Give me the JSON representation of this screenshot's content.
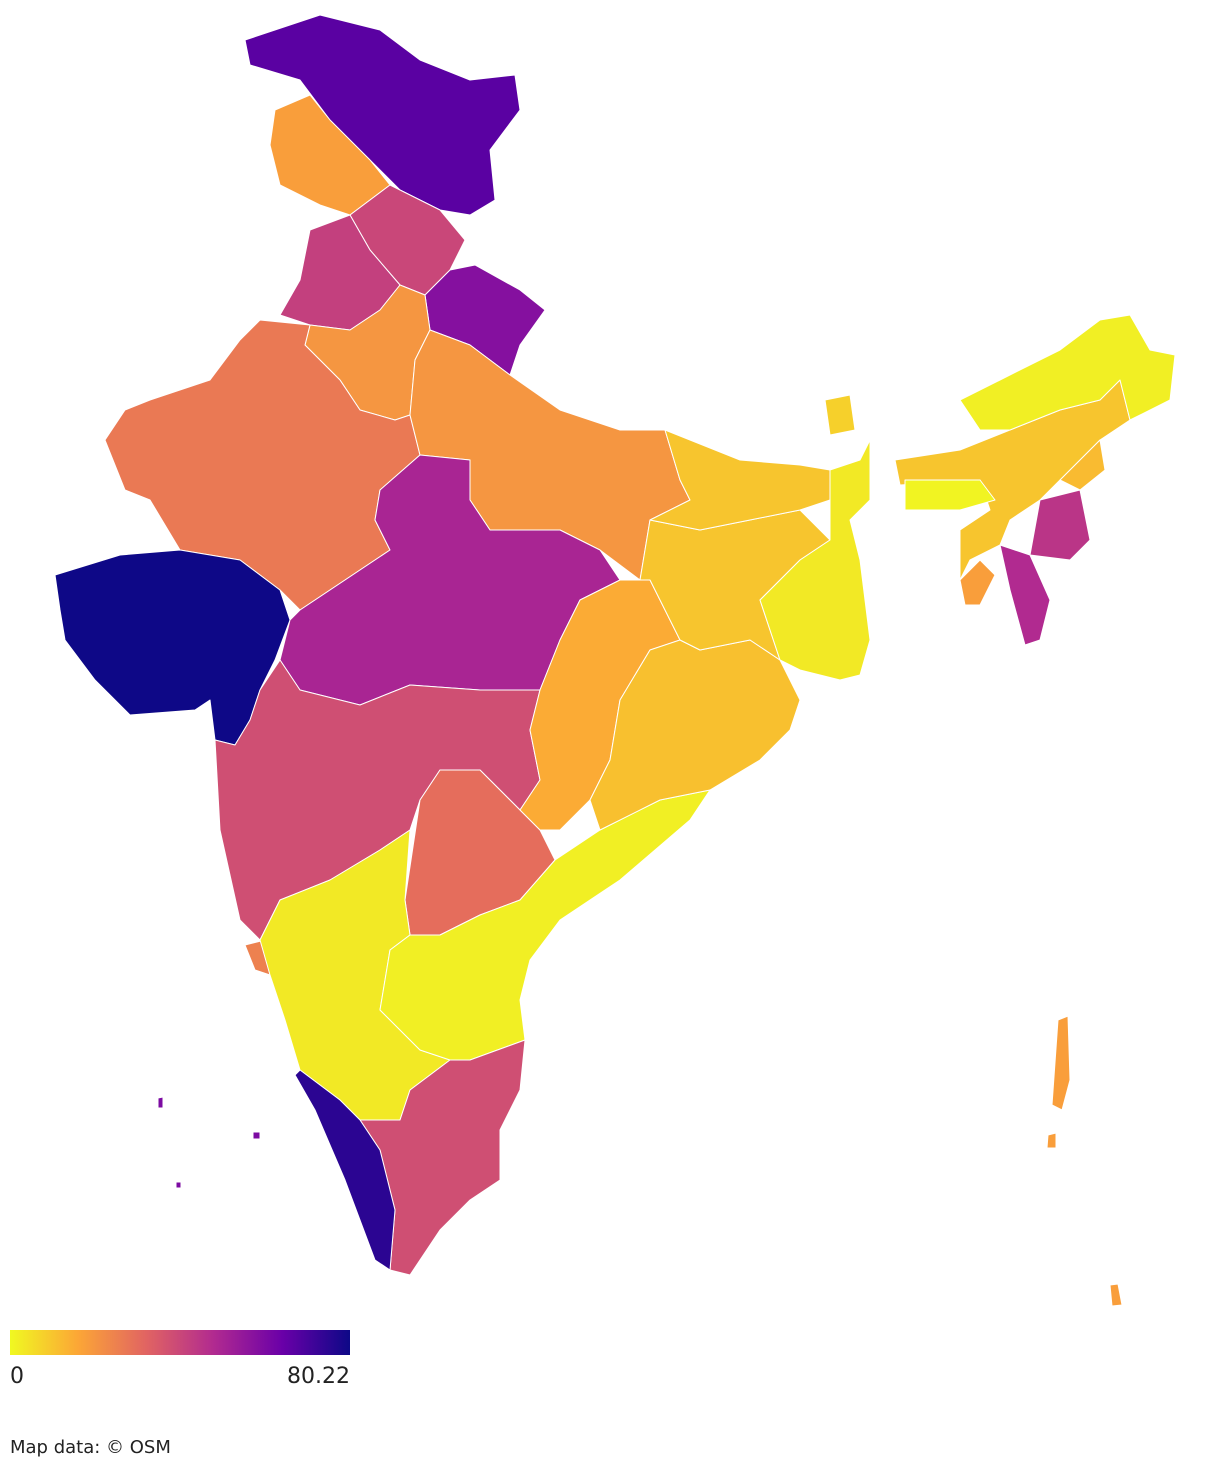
{
  "map": {
    "type": "choropleth",
    "colorbar": {
      "min": 0,
      "max": 80.22,
      "colors": [
        "#f0f921",
        "#fca636",
        "#e16462",
        "#b12a90",
        "#6a00a8",
        "#0d0887"
      ]
    },
    "regions": {
      "values": [
        67,
        18,
        40,
        42,
        58,
        20,
        27,
        20,
        80,
        50,
        38,
        25,
        30,
        3,
        2,
        38,
        75,
        15,
        11,
        10,
        10,
        3,
        8,
        10,
        2,
        1,
        12,
        45,
        48,
        18,
        18,
        60
      ]
    },
    "attribution": "Map data: © OSM"
  }
}
